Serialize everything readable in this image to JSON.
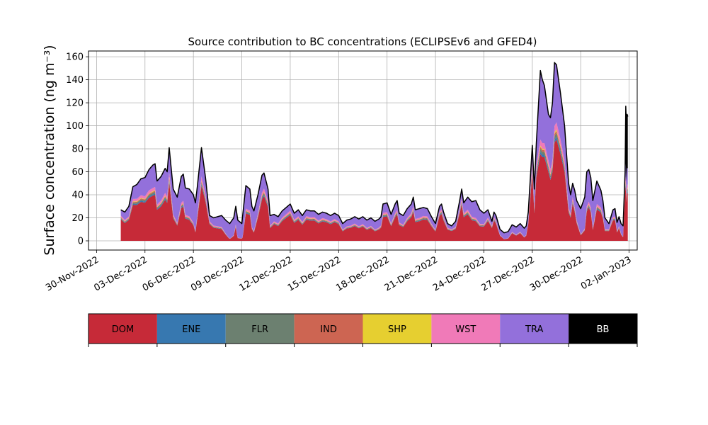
{
  "chart_data": {
    "type": "area",
    "title": "Source contribution to BC concentrations (ECLIPSEv6 and GFED4)",
    "ylabel": "Surface concentration (ng m⁻³)",
    "xlabel": "",
    "ylim": [
      -8,
      165
    ],
    "yticks": [
      0,
      20,
      40,
      60,
      80,
      100,
      120,
      140,
      160
    ],
    "xlim": [
      "2022-11-29T12:00",
      "2023-01-02T12:00"
    ],
    "xtick_dates": [
      "2022-11-30",
      "2022-12-03",
      "2022-12-06",
      "2022-12-09",
      "2022-12-12",
      "2022-12-15",
      "2022-12-18",
      "2022-12-21",
      "2022-12-24",
      "2022-12-27",
      "2022-12-30",
      "2023-01-02"
    ],
    "xtick_labels": [
      "30-Nov-2022",
      "03-Dec-2022",
      "06-Dec-2022",
      "09-Dec-2022",
      "12-Dec-2022",
      "15-Dec-2022",
      "18-Dec-2022",
      "21-Dec-2022",
      "24-Dec-2022",
      "27-Dec-2022",
      "30-Dec-2022",
      "02-Jan-2023"
    ],
    "grid": true,
    "stacked": true,
    "time_step_hours": 3,
    "time_start": "2022-12-01T12:00",
    "colors": {
      "DOM": "#c62a38",
      "ENE": "#3778b0",
      "FLR": "#6c8070",
      "IND": "#cd6552",
      "SHP": "#e6cf30",
      "WST": "#f07ab8",
      "TRA": "#9370db",
      "BB": "#000000"
    },
    "legend": [
      "DOM",
      "ENE",
      "FLR",
      "IND",
      "SHP",
      "WST",
      "TRA",
      "BB"
    ],
    "legend_text_colors": [
      "#000000",
      "#000000",
      "#000000",
      "#000000",
      "#000000",
      "#000000",
      "#000000",
      "#ffffff"
    ],
    "total_keypoints": [
      [
        "2022-12-01T12:00",
        27
      ],
      [
        "2022-12-01T18:00",
        25
      ],
      [
        "2022-12-02T00:00",
        30
      ],
      [
        "2022-12-02T06:00",
        47
      ],
      [
        "2022-12-02T12:00",
        49
      ],
      [
        "2022-12-02T18:00",
        54
      ],
      [
        "2022-12-03T00:00",
        55
      ],
      [
        "2022-12-03T06:00",
        62
      ],
      [
        "2022-12-03T12:00",
        66
      ],
      [
        "2022-12-03T15:00",
        67
      ],
      [
        "2022-12-03T18:00",
        52
      ],
      [
        "2022-12-04T00:00",
        56
      ],
      [
        "2022-12-04T06:00",
        63
      ],
      [
        "2022-12-04T09:00",
        60
      ],
      [
        "2022-12-04T12:00",
        81
      ],
      [
        "2022-12-04T18:00",
        45
      ],
      [
        "2022-12-05T00:00",
        38
      ],
      [
        "2022-12-05T06:00",
        56
      ],
      [
        "2022-12-05T09:00",
        58
      ],
      [
        "2022-12-05T12:00",
        46
      ],
      [
        "2022-12-05T18:00",
        45
      ],
      [
        "2022-12-06T00:00",
        40
      ],
      [
        "2022-12-06T03:00",
        33
      ],
      [
        "2022-12-06T06:00",
        48
      ],
      [
        "2022-12-06T12:00",
        81
      ],
      [
        "2022-12-06T18:00",
        55
      ],
      [
        "2022-12-07T00:00",
        22
      ],
      [
        "2022-12-07T06:00",
        20
      ],
      [
        "2022-12-07T12:00",
        21
      ],
      [
        "2022-12-07T18:00",
        22
      ],
      [
        "2022-12-08T00:00",
        18
      ],
      [
        "2022-12-08T06:00",
        15
      ],
      [
        "2022-12-08T12:00",
        20
      ],
      [
        "2022-12-08T15:00",
        30
      ],
      [
        "2022-12-08T18:00",
        18
      ],
      [
        "2022-12-09T00:00",
        15
      ],
      [
        "2022-12-09T06:00",
        48
      ],
      [
        "2022-12-09T12:00",
        45
      ],
      [
        "2022-12-09T15:00",
        30
      ],
      [
        "2022-12-09T18:00",
        26
      ],
      [
        "2022-12-10T00:00",
        40
      ],
      [
        "2022-12-10T06:00",
        57
      ],
      [
        "2022-12-10T09:00",
        59
      ],
      [
        "2022-12-10T15:00",
        45
      ],
      [
        "2022-12-10T18:00",
        22
      ],
      [
        "2022-12-11T00:00",
        23
      ],
      [
        "2022-12-11T06:00",
        21
      ],
      [
        "2022-12-11T12:00",
        26
      ],
      [
        "2022-12-11T18:00",
        29
      ],
      [
        "2022-12-12T00:00",
        32
      ],
      [
        "2022-12-12T06:00",
        24
      ],
      [
        "2022-12-12T12:00",
        27
      ],
      [
        "2022-12-12T18:00",
        22
      ],
      [
        "2022-12-13T00:00",
        27
      ],
      [
        "2022-12-13T06:00",
        26
      ],
      [
        "2022-12-13T12:00",
        26
      ],
      [
        "2022-12-13T18:00",
        23
      ],
      [
        "2022-12-14T00:00",
        25
      ],
      [
        "2022-12-14T06:00",
        24
      ],
      [
        "2022-12-14T12:00",
        22
      ],
      [
        "2022-12-14T18:00",
        24
      ],
      [
        "2022-12-15T00:00",
        22
      ],
      [
        "2022-12-15T06:00",
        15
      ],
      [
        "2022-12-15T12:00",
        18
      ],
      [
        "2022-12-15T18:00",
        19
      ],
      [
        "2022-12-16T00:00",
        21
      ],
      [
        "2022-12-16T06:00",
        19
      ],
      [
        "2022-12-16T12:00",
        21
      ],
      [
        "2022-12-16T18:00",
        18
      ],
      [
        "2022-12-17T00:00",
        20
      ],
      [
        "2022-12-17T06:00",
        17
      ],
      [
        "2022-12-17T12:00",
        19
      ],
      [
        "2022-12-17T15:00",
        21
      ],
      [
        "2022-12-17T18:00",
        32
      ],
      [
        "2022-12-18T00:00",
        33
      ],
      [
        "2022-12-18T06:00",
        23
      ],
      [
        "2022-12-18T12:00",
        32
      ],
      [
        "2022-12-18T15:00",
        35
      ],
      [
        "2022-12-18T18:00",
        24
      ],
      [
        "2022-12-19T00:00",
        22
      ],
      [
        "2022-12-19T06:00",
        28
      ],
      [
        "2022-12-19T12:00",
        32
      ],
      [
        "2022-12-19T15:00",
        38
      ],
      [
        "2022-12-19T18:00",
        27
      ],
      [
        "2022-12-20T00:00",
        28
      ],
      [
        "2022-12-20T06:00",
        29
      ],
      [
        "2022-12-20T12:00",
        28
      ],
      [
        "2022-12-20T18:00",
        21
      ],
      [
        "2022-12-21T00:00",
        15
      ],
      [
        "2022-12-21T06:00",
        30
      ],
      [
        "2022-12-21T09:00",
        32
      ],
      [
        "2022-12-21T12:00",
        25
      ],
      [
        "2022-12-21T18:00",
        15
      ],
      [
        "2022-12-22T00:00",
        13
      ],
      [
        "2022-12-22T06:00",
        17
      ],
      [
        "2022-12-22T12:00",
        35
      ],
      [
        "2022-12-22T15:00",
        45
      ],
      [
        "2022-12-22T18:00",
        33
      ],
      [
        "2022-12-23T00:00",
        38
      ],
      [
        "2022-12-23T06:00",
        34
      ],
      [
        "2022-12-23T12:00",
        35
      ],
      [
        "2022-12-23T18:00",
        27
      ],
      [
        "2022-12-24T00:00",
        24
      ],
      [
        "2022-12-24T06:00",
        27
      ],
      [
        "2022-12-24T12:00",
        17
      ],
      [
        "2022-12-24T15:00",
        25
      ],
      [
        "2022-12-24T18:00",
        22
      ],
      [
        "2022-12-25T00:00",
        10
      ],
      [
        "2022-12-25T06:00",
        7
      ],
      [
        "2022-12-25T12:00",
        8
      ],
      [
        "2022-12-25T18:00",
        14
      ],
      [
        "2022-12-26T00:00",
        12
      ],
      [
        "2022-12-26T06:00",
        15
      ],
      [
        "2022-12-26T12:00",
        11
      ],
      [
        "2022-12-26T15:00",
        13
      ],
      [
        "2022-12-26T18:00",
        25
      ],
      [
        "2022-12-27T00:00",
        83
      ],
      [
        "2022-12-27T03:00",
        45
      ],
      [
        "2022-12-27T06:00",
        85
      ],
      [
        "2022-12-27T12:00",
        148
      ],
      [
        "2022-12-27T15:00",
        140
      ],
      [
        "2022-12-27T18:00",
        135
      ],
      [
        "2022-12-28T00:00",
        110
      ],
      [
        "2022-12-28T03:00",
        107
      ],
      [
        "2022-12-28T06:00",
        120
      ],
      [
        "2022-12-28T09:00",
        155
      ],
      [
        "2022-12-28T12:00",
        153
      ],
      [
        "2022-12-28T18:00",
        128
      ],
      [
        "2022-12-29T00:00",
        100
      ],
      [
        "2022-12-29T03:00",
        75
      ],
      [
        "2022-12-29T06:00",
        50
      ],
      [
        "2022-12-29T09:00",
        40
      ],
      [
        "2022-12-29T12:00",
        50
      ],
      [
        "2022-12-29T15:00",
        44
      ],
      [
        "2022-12-29T18:00",
        35
      ],
      [
        "2022-12-30T00:00",
        28
      ],
      [
        "2022-12-30T06:00",
        38
      ],
      [
        "2022-12-30T09:00",
        60
      ],
      [
        "2022-12-30T12:00",
        62
      ],
      [
        "2022-12-30T15:00",
        55
      ],
      [
        "2022-12-30T18:00",
        35
      ],
      [
        "2022-12-31T00:00",
        52
      ],
      [
        "2022-12-31T06:00",
        44
      ],
      [
        "2022-12-31T09:00",
        35
      ],
      [
        "2022-12-31T12:00",
        20
      ],
      [
        "2022-12-31T18:00",
        15
      ],
      [
        "2023-01-01T00:00",
        27
      ],
      [
        "2023-01-01T03:00",
        28
      ],
      [
        "2023-01-01T06:00",
        16
      ],
      [
        "2023-01-01T09:00",
        21
      ],
      [
        "2023-01-01T12:00",
        15
      ],
      [
        "2023-01-01T15:00",
        13
      ],
      [
        "2023-01-01T18:00",
        60
      ],
      [
        "2023-01-01T19:00",
        117
      ],
      [
        "2023-01-01T20:00",
        100
      ],
      [
        "2023-01-01T21:00",
        110
      ],
      [
        "2023-01-01T22:00",
        108
      ]
    ],
    "tra_keypoints": [
      [
        "2022-12-01T12:00",
        5
      ],
      [
        "2022-12-03T12:00",
        20
      ],
      [
        "2022-12-06T12:00",
        25
      ],
      [
        "2022-12-07T00:00",
        5
      ],
      [
        "2022-12-09T06:00",
        20
      ],
      [
        "2022-12-10T06:00",
        15
      ],
      [
        "2022-12-11T00:00",
        6
      ],
      [
        "2022-12-15T00:00",
        5
      ],
      [
        "2022-12-18T00:00",
        8
      ],
      [
        "2022-12-20T00:00",
        8
      ],
      [
        "2022-12-22T00:00",
        3
      ],
      [
        "2022-12-23T12:00",
        15
      ],
      [
        "2022-12-24T12:00",
        4
      ],
      [
        "2022-12-26T18:00",
        8
      ],
      [
        "2022-12-27T06:00",
        20
      ],
      [
        "2022-12-27T12:00",
        60
      ],
      [
        "2022-12-28T00:00",
        40
      ],
      [
        "2022-12-28T09:00",
        55
      ],
      [
        "2022-12-29T00:00",
        30
      ],
      [
        "2022-12-29T12:00",
        12
      ],
      [
        "2022-12-30T09:00",
        30
      ],
      [
        "2022-12-31T00:00",
        20
      ],
      [
        "2022-12-31T18:00",
        5
      ],
      [
        "2023-01-01T18:00",
        10
      ],
      [
        "2023-01-01T22:00",
        15
      ]
    ],
    "bb_keypoints": [
      [
        "2022-12-01T12:00",
        0
      ],
      [
        "2022-12-26T18:00",
        0
      ],
      [
        "2022-12-27T00:00",
        0
      ],
      [
        "2023-01-01T15:00",
        0
      ],
      [
        "2023-01-01T18:00",
        0
      ],
      [
        "2023-01-01T19:00",
        50
      ],
      [
        "2023-01-01T22:00",
        45
      ]
    ],
    "minor_fractions": {
      "ENE": 0.025,
      "FLR": 0.03,
      "IND": 0.018,
      "SHP": 0.012,
      "WST": 0.06
    }
  }
}
